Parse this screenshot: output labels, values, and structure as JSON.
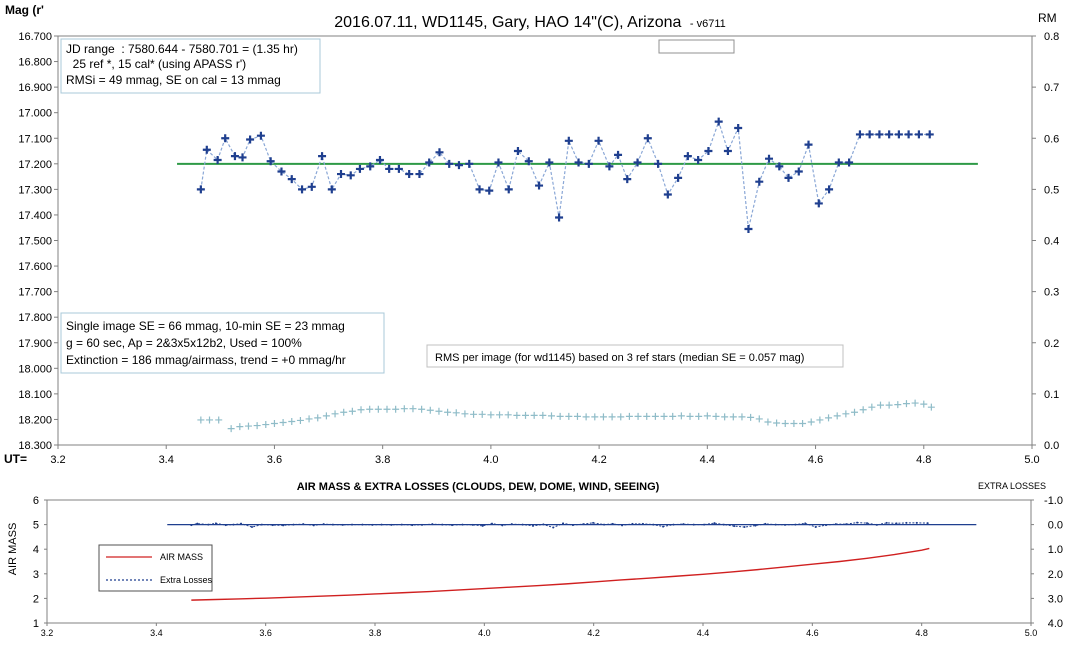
{
  "chart_data": [
    {
      "type": "scatter",
      "title": "2016.07.11,  WD1145, Gary, HAO  14\"(C), Arizona",
      "version_label": "- v6711",
      "ylabel_left": "Mag (r'",
      "ylabel_right": "RM",
      "xlabel": "UT=",
      "xlim": [
        3.2,
        5.0
      ],
      "ylim_left": [
        16.7,
        18.3
      ],
      "ylim_right": [
        0.0,
        0.8
      ],
      "x_ticks": [
        "3.2",
        "3.4",
        "3.6",
        "3.8",
        "4.0",
        "4.2",
        "4.4",
        "4.6",
        "4.8",
        "5.0"
      ],
      "y_left_ticks": [
        "16.700",
        "16.800",
        "16.900",
        "17.000",
        "17.100",
        "17.200",
        "17.300",
        "17.400",
        "17.500",
        "17.600",
        "17.700",
        "17.800",
        "17.900",
        "18.000",
        "18.100",
        "18.200",
        "18.300"
      ],
      "y_right_ticks": [
        "0.8",
        "0.7",
        "0.6",
        "0.5",
        "0.4",
        "0.3",
        "0.2",
        "0.1",
        "0.0"
      ],
      "grid": false,
      "legend_text": "",
      "info_box_top": [
        "JD range  : 7580.644 - 7580.701 = (1.35 hr)",
        "  25 ref *, 15 cal* (using APASS r')",
        "RMSi = 49 mmag, SE on cal = 13 mmag"
      ],
      "info_box_mid": [
        "Single image SE = 66 mmag, 10-min SE = 23 mmag",
        "g = 60 sec, Ap = 2&3x5x12b2, Used = 100%",
        "Extinction = 186 mmag/airmass, trend = +0 mmag/hr"
      ],
      "rms_label": "RMS per image (for wd1145) based on 3 ref stars (median SE = 0.057 mag)",
      "mean_line": {
        "value": 17.2,
        "x_start": 3.42,
        "x_end": 4.9,
        "color": "#2e9a46"
      },
      "series": [
        {
          "name": "WD1145 magnitude",
          "color": "#1f3f8f",
          "x": [
            3.464,
            3.475,
            3.495,
            3.509,
            3.527,
            3.541,
            3.555,
            3.575,
            3.593,
            3.613,
            3.632,
            3.651,
            3.669,
            3.688,
            3.706,
            3.723,
            3.741,
            3.758,
            3.777,
            3.795,
            3.812,
            3.83,
            3.849,
            3.868,
            3.886,
            3.905,
            3.923,
            3.941,
            3.96,
            3.979,
            3.997,
            4.014,
            4.033,
            4.05,
            4.07,
            4.089,
            4.108,
            4.126,
            4.144,
            4.162,
            4.181,
            4.199,
            4.219,
            4.235,
            4.252,
            4.271,
            4.29,
            4.309,
            4.327,
            4.346,
            4.364,
            4.383,
            4.402,
            4.421,
            4.438,
            4.457,
            4.476,
            4.496,
            4.514,
            4.533,
            4.55,
            4.569,
            4.587,
            4.606,
            4.625,
            4.643,
            4.662,
            4.682,
            4.7,
            4.718,
            4.736,
            4.754,
            4.772,
            4.791,
            4.811
          ],
          "y": [
            17.3,
            17.145,
            17.185,
            17.1,
            17.17,
            17.175,
            17.105,
            17.09,
            17.19,
            17.23,
            17.26,
            17.3,
            17.29,
            17.17,
            17.3,
            17.24,
            17.245,
            17.22,
            17.21,
            17.185,
            17.22,
            17.22,
            17.24,
            17.24,
            17.195,
            17.155,
            17.2,
            17.205,
            17.2,
            17.3,
            17.305,
            17.195,
            17.3,
            17.15,
            17.19,
            17.285,
            17.195,
            17.41,
            17.11,
            17.195,
            17.2,
            17.11,
            17.21,
            17.165,
            17.26,
            17.195,
            17.1,
            17.2,
            17.32,
            17.255,
            17.17,
            17.185,
            17.15,
            17.035,
            17.15,
            17.06,
            17.455,
            17.27,
            17.18,
            17.21,
            17.255,
            17.23,
            17.125,
            17.355,
            17.3,
            17.195,
            17.195,
            17.085,
            17.085,
            17.085,
            17.085,
            17.085,
            17.085,
            17.085,
            17.085
          ]
        },
        {
          "name": "RMS per image",
          "axis": "right",
          "color": "#8fbcc8",
          "x": [
            3.464,
            3.48,
            3.497,
            3.52,
            3.536,
            3.552,
            3.568,
            3.584,
            3.6,
            3.616,
            3.632,
            3.648,
            3.664,
            3.68,
            3.696,
            3.712,
            3.728,
            3.744,
            3.76,
            3.776,
            3.792,
            3.808,
            3.824,
            3.84,
            3.856,
            3.872,
            3.888,
            3.904,
            3.92,
            3.936,
            3.952,
            3.968,
            3.984,
            4.0,
            4.016,
            4.032,
            4.048,
            4.064,
            4.08,
            4.096,
            4.112,
            4.128,
            4.144,
            4.16,
            4.176,
            4.192,
            4.208,
            4.224,
            4.24,
            4.256,
            4.272,
            4.288,
            4.304,
            4.32,
            4.336,
            4.352,
            4.368,
            4.384,
            4.4,
            4.416,
            4.432,
            4.448,
            4.464,
            4.48,
            4.496,
            4.512,
            4.528,
            4.544,
            4.56,
            4.576,
            4.592,
            4.608,
            4.624,
            4.64,
            4.656,
            4.672,
            4.688,
            4.704,
            4.72,
            4.736,
            4.752,
            4.768,
            4.784,
            4.8,
            4.814
          ],
          "y": [
            0.049,
            0.049,
            0.049,
            0.032,
            0.036,
            0.037,
            0.038,
            0.04,
            0.042,
            0.044,
            0.046,
            0.048,
            0.051,
            0.053,
            0.057,
            0.061,
            0.064,
            0.066,
            0.069,
            0.07,
            0.07,
            0.07,
            0.07,
            0.071,
            0.071,
            0.07,
            0.068,
            0.066,
            0.064,
            0.063,
            0.061,
            0.06,
            0.06,
            0.059,
            0.059,
            0.059,
            0.058,
            0.058,
            0.058,
            0.058,
            0.057,
            0.056,
            0.056,
            0.056,
            0.055,
            0.055,
            0.055,
            0.055,
            0.055,
            0.056,
            0.056,
            0.056,
            0.056,
            0.056,
            0.056,
            0.057,
            0.056,
            0.056,
            0.057,
            0.056,
            0.055,
            0.055,
            0.055,
            0.054,
            0.051,
            0.045,
            0.043,
            0.042,
            0.042,
            0.042,
            0.045,
            0.049,
            0.053,
            0.057,
            0.061,
            0.064,
            0.069,
            0.074,
            0.078,
            0.078,
            0.079,
            0.081,
            0.082,
            0.08,
            0.074
          ]
        }
      ]
    },
    {
      "type": "line",
      "title": "AIR MASS & EXTRA LOSSES (CLOUDS, DEW, DOME, WIND, SEEING)",
      "ylabel_left": "AIR MASS",
      "ylabel_right": "EXTRA LOSSES",
      "xlim": [
        3.2,
        5.0
      ],
      "ylim_left": [
        1,
        6
      ],
      "ylim_right": [
        4.0,
        -1.0
      ],
      "x_ticks": [
        "3.2",
        "3.4",
        "3.6",
        "3.8",
        "4.0",
        "4.2",
        "4.4",
        "4.6",
        "4.8",
        "5.0"
      ],
      "y_left_ticks": [
        "6",
        "5",
        "4",
        "3",
        "2",
        "1"
      ],
      "y_right_ticks": [
        "-1.0",
        "0.0",
        "1.0",
        "2.0",
        "3.0",
        "4.0"
      ],
      "reference_line": {
        "value": 0.0,
        "axis": "right",
        "x_start": 3.42,
        "x_end": 4.9,
        "color": "#1f3f8f"
      },
      "legend": [
        {
          "label": "AIR MASS",
          "color": "#d02020",
          "style": "solid"
        },
        {
          "label": "Extra Losses",
          "color": "#1f3f8f",
          "style": "dashed"
        }
      ],
      "series": [
        {
          "name": "AIR MASS",
          "color": "#d02020",
          "x": [
            3.464,
            3.5,
            3.55,
            3.6,
            3.65,
            3.7,
            3.75,
            3.8,
            3.85,
            3.9,
            3.95,
            4.0,
            4.05,
            4.1,
            4.15,
            4.2,
            4.25,
            4.3,
            4.35,
            4.4,
            4.45,
            4.5,
            4.55,
            4.6,
            4.65,
            4.7,
            4.75,
            4.8,
            4.814
          ],
          "y": [
            1.93,
            1.95,
            1.98,
            2.01,
            2.05,
            2.09,
            2.13,
            2.18,
            2.23,
            2.28,
            2.34,
            2.4,
            2.46,
            2.52,
            2.59,
            2.67,
            2.75,
            2.82,
            2.9,
            2.98,
            3.07,
            3.17,
            3.28,
            3.39,
            3.5,
            3.63,
            3.78,
            3.96,
            4.03
          ]
        },
        {
          "name": "Extra Losses",
          "axis": "right",
          "color": "#1f3f8f",
          "x": [
            3.464,
            3.475,
            3.495,
            3.509,
            3.527,
            3.541,
            3.555,
            3.575,
            3.593,
            3.613,
            3.632,
            3.651,
            3.669,
            3.688,
            3.706,
            3.723,
            3.741,
            3.758,
            3.777,
            3.795,
            3.812,
            3.83,
            3.849,
            3.868,
            3.886,
            3.905,
            3.923,
            3.941,
            3.96,
            3.979,
            3.997,
            4.014,
            4.033,
            4.05,
            4.07,
            4.089,
            4.108,
            4.126,
            4.144,
            4.162,
            4.181,
            4.199,
            4.219,
            4.235,
            4.252,
            4.271,
            4.29,
            4.309,
            4.327,
            4.346,
            4.364,
            4.383,
            4.402,
            4.421,
            4.438,
            4.457,
            4.476,
            4.496,
            4.514,
            4.533,
            4.55,
            4.569,
            4.587,
            4.606,
            4.625,
            4.643,
            4.662,
            4.682,
            4.7,
            4.718,
            4.736,
            4.754,
            4.772,
            4.791,
            4.811
          ],
          "y": [
            0.02,
            -0.04,
            0.0,
            -0.05,
            0.02,
            0.0,
            -0.04,
            0.1,
            0.0,
            0.02,
            0.03,
            0.0,
            -0.02,
            0.03,
            -0.02,
            0.0,
            0.01,
            0.0,
            0.0,
            0.01,
            0.0,
            0.01,
            0.0,
            0.02,
            0.01,
            -0.02,
            0.0,
            0.02,
            0.0,
            0.01,
            0.05,
            -0.04,
            0.03,
            -0.02,
            0.0,
            0.05,
            -0.01,
            0.12,
            -0.05,
            0.02,
            -0.02,
            -0.07,
            0.0,
            -0.03,
            0.03,
            -0.03,
            -0.03,
            0.0,
            0.08,
            0.0,
            -0.02,
            0.0,
            0.0,
            -0.06,
            0.0,
            0.06,
            0.1,
            0.04,
            -0.03,
            0.0,
            0.01,
            0.0,
            -0.05,
            0.1,
            0.02,
            -0.02,
            -0.02,
            -0.08,
            -0.06,
            0.01,
            -0.07,
            -0.05,
            -0.07,
            -0.07,
            -0.06
          ]
        }
      ]
    }
  ]
}
